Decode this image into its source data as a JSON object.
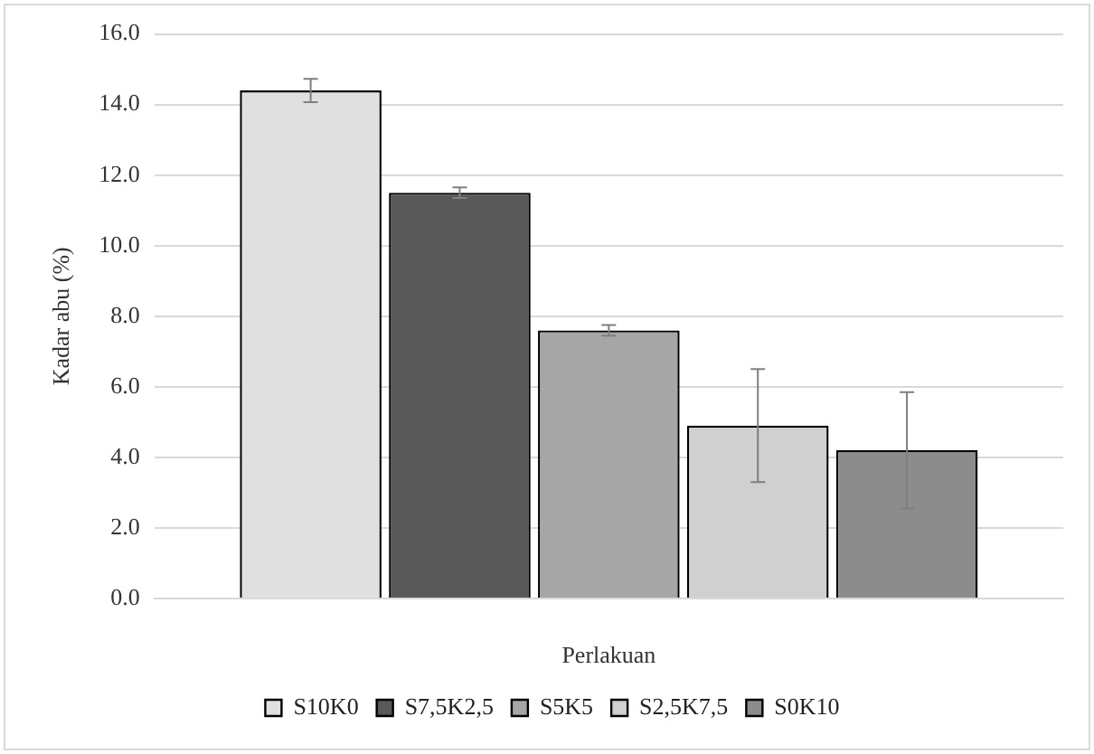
{
  "chart_data": {
    "type": "bar",
    "xlabel": "Perlakuan",
    "ylabel": "Kadar abu (%)",
    "categories": [
      null
    ],
    "series": [
      {
        "name": "S10K0",
        "color": "#e0e0e0",
        "values": [
          14.4
        ],
        "errors": [
          0.33
        ]
      },
      {
        "name": "S7,5K2,5",
        "color": "#595959",
        "values": [
          11.5
        ],
        "errors": [
          0.15
        ]
      },
      {
        "name": "S5K5",
        "color": "#a6a6a6",
        "values": [
          7.6
        ],
        "errors": [
          0.15
        ]
      },
      {
        "name": "S2,5K7,5",
        "color": "#d0d0d0",
        "values": [
          4.9
        ],
        "errors": [
          1.6
        ]
      },
      {
        "name": "S0K10",
        "color": "#8c8c8c",
        "values": [
          4.2
        ],
        "errors": [
          1.65
        ]
      }
    ],
    "ylim": [
      0,
      16
    ],
    "yticks": [
      {
        "value": 0,
        "label": "0.0"
      },
      {
        "value": 2,
        "label": "2.0"
      },
      {
        "value": 4,
        "label": "4.0"
      },
      {
        "value": 6,
        "label": "6.0"
      },
      {
        "value": 8,
        "label": "8.0"
      },
      {
        "value": 10,
        "label": "10.0"
      },
      {
        "value": 12,
        "label": "12.0"
      },
      {
        "value": 14,
        "label": "14.0"
      },
      {
        "value": 16,
        "label": "16.0"
      }
    ],
    "grid": "y",
    "legend": "bottom"
  }
}
